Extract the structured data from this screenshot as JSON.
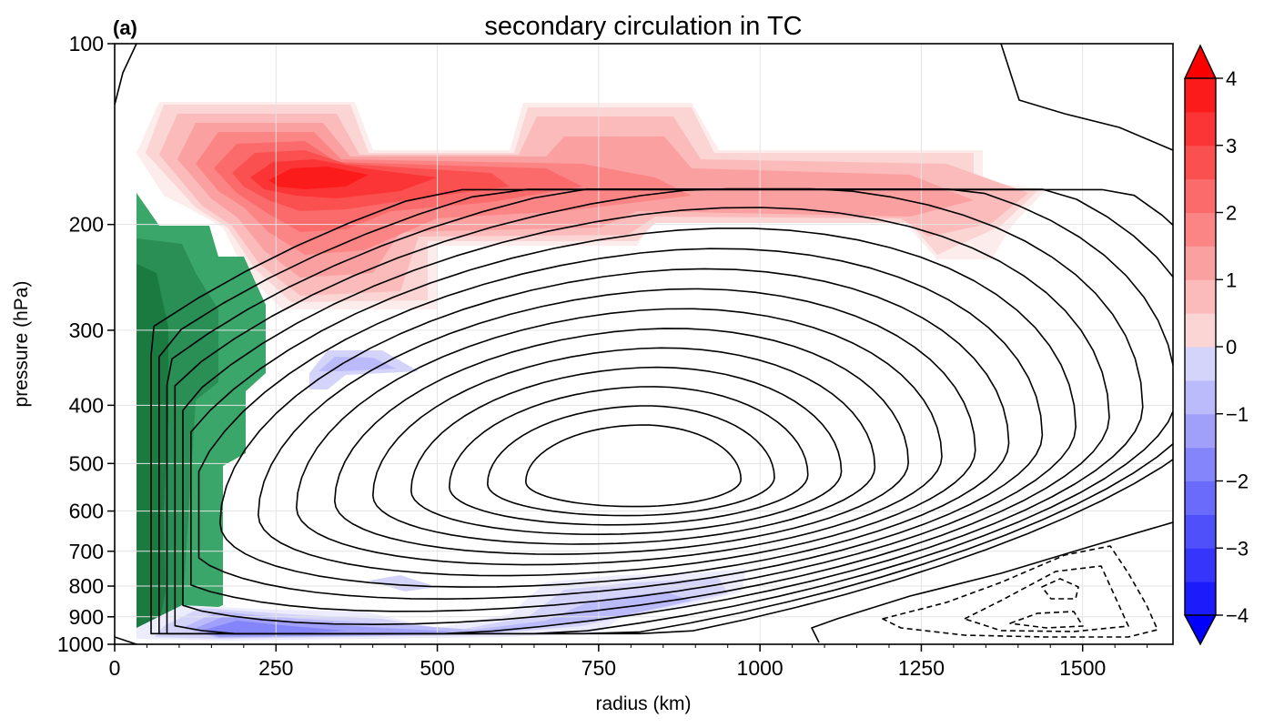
{
  "chart_data": {
    "type": "contour",
    "panel_label": "(a)",
    "title": "secondary circulation in TC",
    "xlabel": "radius (km)",
    "ylabel": "pressure (hPa)",
    "xlim": [
      0,
      1640
    ],
    "ylim": [
      1000,
      100
    ],
    "yscale": "log",
    "x_ticks": [
      0,
      250,
      500,
      750,
      1000,
      1250,
      1500
    ],
    "y_ticks": [
      100,
      200,
      300,
      400,
      500,
      600,
      700,
      800,
      900,
      1000
    ],
    "grid": true,
    "colorbar": {
      "range": [
        -4,
        4
      ],
      "step": 0.5,
      "ticks": [
        -4,
        -3,
        -2,
        -1,
        0,
        1,
        2,
        3,
        4
      ],
      "tick_labels": [
        "−4",
        "−3",
        "−2",
        "−1",
        "0",
        "1",
        "2",
        "3",
        "4"
      ],
      "extend": "both",
      "colors": {
        "neg": [
          "#1b1bfb",
          "#3535fb",
          "#5050fb",
          "#6b6bfb",
          "#8585fb",
          "#a0a0fb",
          "#bbbbfb",
          "#d4d4fb",
          "#ececfd"
        ],
        "pos": [
          "#fdecec",
          "#fbd4d4",
          "#fbbbbb",
          "#fba0a0",
          "#fb8585",
          "#fb6b6b",
          "#fb5050",
          "#fb3535",
          "#fb1b1b"
        ]
      }
    },
    "shaded_regions": [
      {
        "name": "upper-outflow-warm",
        "sign": "positive",
        "peak": 3.7,
        "x_range": [
          40,
          1430
        ],
        "p_range": [
          140,
          270
        ],
        "peak_at": [
          330,
          185
        ]
      },
      {
        "name": "eyewall-updraft",
        "sign": "green",
        "x_range": [
          35,
          240
        ],
        "p_range": [
          180,
          950
        ],
        "color": "#1f8a4c"
      },
      {
        "name": "boundary-layer-inflow",
        "sign": "negative",
        "peak": -1.5,
        "x_range": [
          150,
          820
        ],
        "p_range": [
          780,
          990
        ],
        "peak_at": [
          230,
          940
        ]
      },
      {
        "name": "mid-level-weak-negative",
        "sign": "negative",
        "peak": -0.7,
        "x_range": [
          300,
          470
        ],
        "p_range": [
          330,
          380
        ],
        "peak_at": [
          380,
          350
        ]
      }
    ],
    "contours": {
      "solid_max_location": [
        850,
        530
      ],
      "solid_levels": 16,
      "dashed_min_location": [
        1440,
        870
      ],
      "dashed_levels": 4
    }
  }
}
